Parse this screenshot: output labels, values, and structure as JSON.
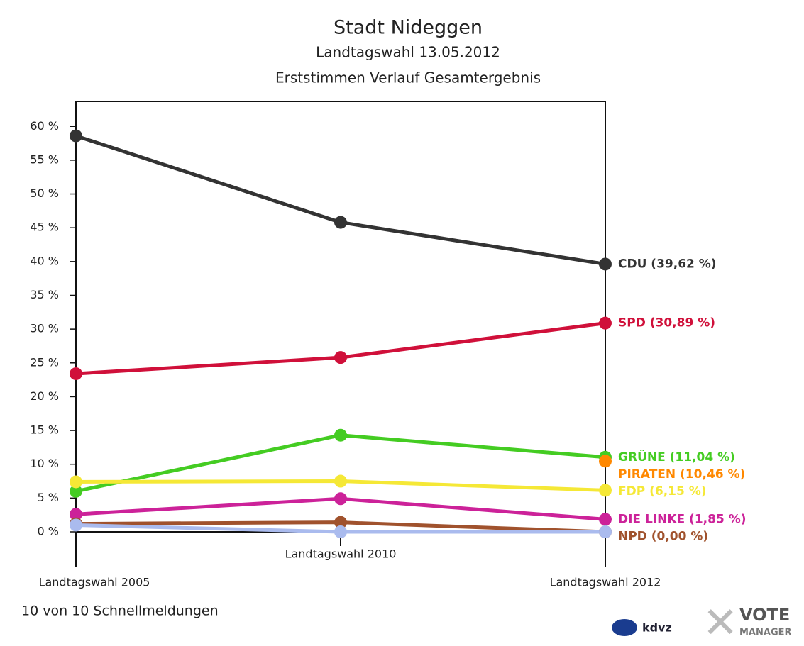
{
  "chart_data": {
    "type": "line",
    "title": "Stadt Nideggen",
    "subtitle": [
      "Landtagswahl 13.05.2012",
      "Erststimmen Verlauf Gesamtergebnis"
    ],
    "categories": [
      "Landtagswahl 2005",
      "Landtagswahl 2010",
      "Landtagswahl 2012"
    ],
    "series": [
      {
        "name": "CDU (39,62 %)",
        "color": "#333333",
        "values": [
          58.6,
          45.8,
          39.62
        ]
      },
      {
        "name": "SPD (30,89 %)",
        "color": "#d0103a",
        "values": [
          23.4,
          25.8,
          30.89
        ]
      },
      {
        "name": "GRÜNE (11,04 %)",
        "color": "#44cc22",
        "values": [
          6.0,
          14.3,
          11.04
        ]
      },
      {
        "name": "PIRATEN (10,46 %)",
        "color": "#ff8800",
        "values": [
          null,
          null,
          10.46
        ]
      },
      {
        "name": "FDP (6,15 %)",
        "color": "#f5e836",
        "values": [
          7.4,
          7.5,
          6.15
        ]
      },
      {
        "name": "DIE LINKE (1,85 %)",
        "color": "#cc2299",
        "values": [
          2.6,
          4.9,
          1.85
        ]
      },
      {
        "name": "NPD (0,00 %)",
        "color": "#a0522d",
        "values": [
          1.2,
          1.4,
          0.0
        ]
      },
      {
        "color": "#aabbee",
        "values": [
          1.0,
          0.0,
          0.0
        ]
      }
    ],
    "ylim": [
      0,
      63.7
    ],
    "yticks": [
      {
        "value": 0,
        "label": "0 %"
      },
      {
        "value": 5,
        "label": "5 %"
      },
      {
        "value": 10,
        "label": "10 %"
      },
      {
        "value": 15,
        "label": "15 %"
      },
      {
        "value": 20,
        "label": "20 %"
      },
      {
        "value": 25,
        "label": "25 %"
      },
      {
        "value": 30,
        "label": "30 %"
      },
      {
        "value": 35,
        "label": "35 %"
      },
      {
        "value": 40,
        "label": "40 %"
      },
      {
        "value": 45,
        "label": "45 %"
      },
      {
        "value": 50,
        "label": "50 %"
      },
      {
        "value": 55,
        "label": "55 %"
      },
      {
        "value": 60,
        "label": "60 %"
      }
    ],
    "footer": "10 von 10 Schnellmeldungen",
    "logos": [
      "kdvz",
      "VOTE",
      "MANAGER"
    ]
  }
}
